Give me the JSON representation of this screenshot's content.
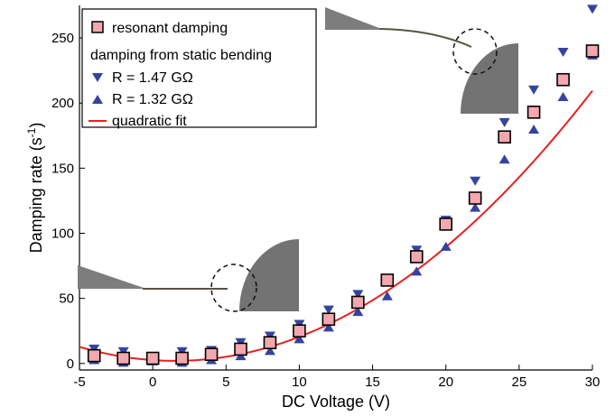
{
  "chart_data": {
    "type": "scatter",
    "xlabel": "DC Voltage (V)",
    "ylabel_main": "Damping rate (s",
    "ylabel_sup": "-1",
    "ylabel_close": ")",
    "xlim": [
      -5,
      30
    ],
    "ylim": [
      -5,
      275
    ],
    "xticks": [
      -5,
      0,
      5,
      10,
      15,
      20,
      25,
      30
    ],
    "yticks": [
      0,
      50,
      100,
      150,
      200,
      250
    ],
    "grid": false,
    "legend_position": "top-left",
    "legend": {
      "resonant": "resonant damping",
      "static_header": "damping from static bending",
      "down": "R = 1.47 GΩ",
      "up": "R = 1.32 GΩ",
      "fit": "quadratic fit"
    },
    "colors": {
      "square_fill": "#f4a7ae",
      "triangle": "#3344a0",
      "fit": "#e8211f",
      "inset_gray": "#7a7a7a"
    },
    "series": [
      {
        "name": "resonant damping",
        "marker": "square",
        "x": [
          -4,
          -2,
          0,
          2,
          4,
          6,
          8,
          10,
          12,
          14,
          16,
          18,
          20,
          22,
          24,
          26,
          28,
          30
        ],
        "y": [
          6,
          4,
          4,
          4,
          7,
          11,
          16,
          25,
          34,
          47,
          64,
          82,
          107,
          127,
          174,
          193,
          218,
          240
        ]
      },
      {
        "name": "R = 1.47 GΩ",
        "marker": "triangle-down",
        "x": [
          -4,
          -2,
          0,
          2,
          4,
          6,
          8,
          10,
          12,
          14,
          16,
          18,
          20,
          22,
          24,
          26,
          28,
          30
        ],
        "y": [
          11,
          9,
          4,
          9,
          10,
          16,
          21,
          30,
          41,
          53,
          65,
          87,
          110,
          140,
          185,
          210,
          239,
          272
        ]
      },
      {
        "name": "R = 1.32 GΩ",
        "marker": "triangle-up",
        "x": [
          -4,
          -2,
          0,
          2,
          4,
          6,
          8,
          10,
          12,
          14,
          16,
          18,
          20,
          22,
          24,
          26,
          28,
          30
        ],
        "y": [
          3,
          1,
          2,
          1,
          3,
          6,
          10,
          19,
          28,
          40,
          52,
          71,
          90,
          120,
          157,
          180,
          205,
          237
        ]
      },
      {
        "name": "quadratic fit",
        "type": "line",
        "coefficients": {
          "a": 0.2555,
          "h": 1.5,
          "k": 2
        }
      }
    ]
  }
}
